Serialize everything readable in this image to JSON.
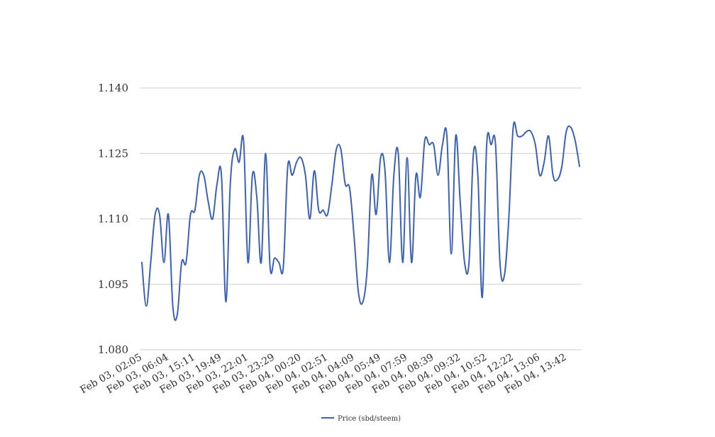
{
  "chart_data": {
    "type": "line",
    "title": "",
    "xlabel": "",
    "ylabel": "",
    "ylim": [
      1.08,
      1.14
    ],
    "y_ticks": [
      "1.080",
      "1.095",
      "1.110",
      "1.125",
      "1.140"
    ],
    "grid": true,
    "legend_position": "bottom",
    "line_color": "#3a62b8",
    "grid_color": "#cfcfcf",
    "x_tick_labels": [
      "Feb 03, 02:05",
      "Feb 03, 06:04",
      "Feb 03, 15:11",
      "Feb 03, 19:49",
      "Feb 03, 22:01",
      "Feb 03, 23:29",
      "Feb 04, 00:20",
      "Feb 04, 02:51",
      "Feb 04, 04:09",
      "Feb 04, 05:49",
      "Feb 04, 07:59",
      "Feb 04, 08:39",
      "Feb 04, 09:32",
      "Feb 04, 10:52",
      "Feb 04, 12:22",
      "Feb 04, 13:06",
      "Feb 04, 13:42"
    ],
    "series": [
      {
        "name": "Price (sbd/steem)",
        "values": [
          1.1,
          1.09,
          1.1,
          1.111,
          1.111,
          1.1,
          1.111,
          1.09,
          1.088,
          1.1,
          1.1,
          1.111,
          1.112,
          1.12,
          1.12,
          1.114,
          1.11,
          1.118,
          1.12,
          1.091,
          1.118,
          1.126,
          1.123,
          1.128,
          1.1,
          1.12,
          1.115,
          1.1,
          1.125,
          1.099,
          1.101,
          1.1,
          1.099,
          1.122,
          1.12,
          1.123,
          1.124,
          1.12,
          1.11,
          1.121,
          1.112,
          1.112,
          1.111,
          1.118,
          1.126,
          1.126,
          1.118,
          1.117,
          1.106,
          1.093,
          1.091,
          1.099,
          1.12,
          1.111,
          1.124,
          1.121,
          1.1,
          1.12,
          1.125,
          1.1,
          1.124,
          1.1,
          1.12,
          1.115,
          1.128,
          1.127,
          1.127,
          1.12,
          1.127,
          1.129,
          1.102,
          1.129,
          1.114,
          1.1,
          1.1,
          1.125,
          1.12,
          1.092,
          1.127,
          1.127,
          1.127,
          1.1,
          1.097,
          1.11,
          1.131,
          1.129,
          1.129,
          1.13,
          1.13,
          1.127,
          1.12,
          1.123,
          1.129,
          1.12,
          1.119,
          1.122,
          1.13,
          1.131,
          1.128,
          1.122
        ]
      }
    ]
  }
}
